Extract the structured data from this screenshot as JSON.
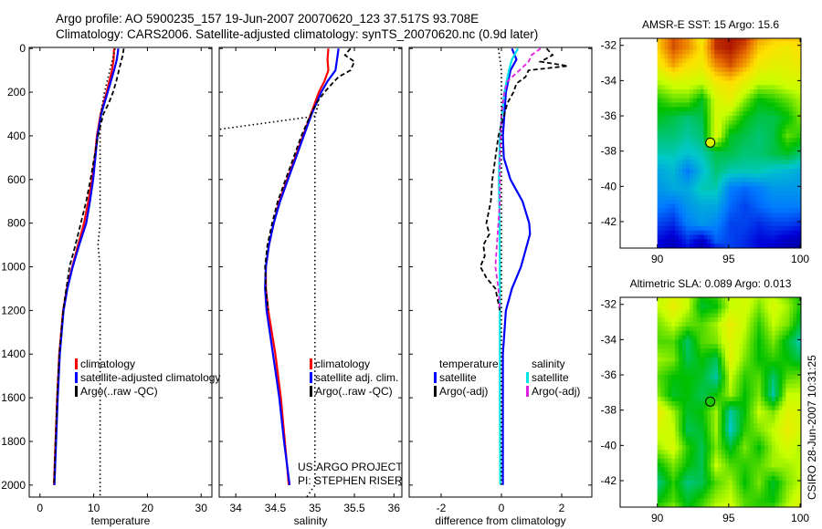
{
  "header": {
    "line1": "Argo profile: AO 5900235_157 19-Jun-2007 20070620_123 37.517S 93.708E",
    "line2": "Climatology: CARS2006. Satellite-adjusted climatology: synTS_20070620.nc (0.9d later)"
  },
  "credits": {
    "line1": "US:ARGO PROJECT",
    "line2": "PI: STEPHEN RISER"
  },
  "timestamp": "CSIRO 28-Jun-2007 10:31:25",
  "colors": {
    "climatology": "#ff0000",
    "satellite": "#0000ff",
    "argo": "#000000",
    "sal_satellite": "#00e5e5",
    "sal_argo": "#e020e0"
  },
  "colormap": [
    "#000080",
    "#0000d8",
    "#0078ff",
    "#00c8c8",
    "#00c000",
    "#c8ff00",
    "#ffe000",
    "#e87000",
    "#a00000"
  ],
  "chart_data": [
    {
      "type": "line",
      "id": "temperature",
      "xlabel": "temperature",
      "ylabel": "",
      "xlim": [
        -2,
        32
      ],
      "ylim": [
        2055,
        -5
      ],
      "xticks": [
        0,
        10,
        20,
        30
      ],
      "yticks": [
        0,
        200,
        400,
        600,
        800,
        1000,
        1200,
        1400,
        1600,
        1800,
        2000
      ],
      "legend": [
        "climatology",
        "satellite-adjusted climatology",
        "Argo(..raw -QC)"
      ],
      "series": [
        {
          "name": "climatology",
          "style": "red",
          "depth": [
            0,
            50,
            100,
            200,
            300,
            400,
            500,
            600,
            700,
            800,
            900,
            1000,
            1100,
            1200,
            1400,
            1600,
            1800,
            2000
          ],
          "values": [
            13.8,
            13.7,
            13.4,
            12.4,
            11.3,
            10.6,
            10.2,
            9.7,
            9.0,
            8.2,
            7.1,
            6.0,
            5.0,
            4.3,
            3.6,
            3.2,
            2.9,
            2.6
          ]
        },
        {
          "name": "satellite-adjusted climatology",
          "style": "blue",
          "depth": [
            0,
            50,
            100,
            200,
            300,
            400,
            500,
            600,
            700,
            800,
            900,
            1000,
            1100,
            1200,
            1400,
            1600,
            1800,
            2000
          ],
          "values": [
            14.6,
            14.3,
            13.8,
            12.6,
            11.4,
            10.7,
            10.3,
            9.9,
            9.3,
            8.6,
            7.3,
            6.1,
            5.1,
            4.4,
            3.7,
            3.3,
            3.0,
            2.7
          ]
        },
        {
          "name": "Argo(..raw -QC)",
          "style": "dash",
          "depth": [
            0,
            30,
            60,
            100,
            150,
            200,
            250,
            300,
            400,
            500,
            600,
            700,
            800,
            900,
            1000,
            1050,
            1100,
            1200,
            1400,
            1600,
            1800,
            2000
          ],
          "values": [
            15.6,
            15.4,
            15.1,
            14.7,
            14.2,
            13.6,
            12.8,
            11.8,
            10.8,
            10.1,
            9.4,
            8.6,
            7.6,
            6.6,
            5.5,
            5.2,
            4.9,
            4.3,
            3.6,
            3.2,
            2.9,
            2.6
          ]
        },
        {
          "name": "Argo raw",
          "style": "dot",
          "depth": [
            0,
            100,
            200,
            300,
            400,
            600,
            800,
            900,
            1000,
            1200,
            1600,
            2050
          ],
          "values": [
            14.0,
            13.0,
            12.0,
            11.3,
            11.2,
            11.2,
            11.2,
            10.8,
            11.2,
            11.2,
            11.2,
            11.2
          ]
        }
      ]
    },
    {
      "type": "line",
      "id": "salinity",
      "xlabel": "salinity",
      "xlim": [
        33.79,
        36.1
      ],
      "ylim": [
        2055,
        -5
      ],
      "xticks": [
        34,
        34.5,
        35,
        35.5,
        36
      ],
      "yticks": [
        0,
        200,
        400,
        600,
        800,
        1000,
        1200,
        1400,
        1600,
        1800,
        2000
      ],
      "legend": [
        "climatology",
        "satellite adj. clim.",
        "Argo(..raw -QC)"
      ],
      "series": [
        {
          "name": "climatology",
          "style": "red",
          "depth": [
            0,
            50,
            100,
            150,
            200,
            300,
            400,
            500,
            600,
            700,
            800,
            900,
            1000,
            1100,
            1200,
            1400,
            1600,
            1800,
            2000
          ],
          "values": [
            35.17,
            35.16,
            35.17,
            35.12,
            35.05,
            34.95,
            34.85,
            34.75,
            34.65,
            34.55,
            34.48,
            34.42,
            34.38,
            34.38,
            34.41,
            34.5,
            34.57,
            34.62,
            34.67
          ]
        },
        {
          "name": "satellite adj. clim.",
          "style": "blue",
          "depth": [
            0,
            50,
            100,
            150,
            200,
            300,
            400,
            500,
            600,
            700,
            800,
            900,
            1000,
            1100,
            1200,
            1400,
            1600,
            1800,
            2000
          ],
          "values": [
            35.3,
            35.28,
            35.26,
            35.16,
            35.08,
            34.96,
            34.86,
            34.76,
            34.66,
            34.56,
            34.48,
            34.42,
            34.38,
            34.37,
            34.39,
            34.47,
            34.55,
            34.61,
            34.68
          ]
        },
        {
          "name": "Argo(..raw -QC)",
          "style": "dash",
          "depth": [
            0,
            30,
            60,
            100,
            130,
            160,
            200,
            250,
            300,
            400,
            500,
            600,
            700,
            800,
            900,
            1000,
            1100,
            1200
          ],
          "values": [
            35.45,
            35.38,
            35.5,
            35.45,
            35.3,
            35.22,
            35.12,
            35.02,
            34.95,
            34.83,
            34.73,
            34.63,
            34.53,
            34.46,
            34.4,
            34.37,
            34.38,
            34.41
          ]
        },
        {
          "name": "Argo raw",
          "style": "dot",
          "depth": [
            370,
            310,
            250,
            300,
            400,
            600,
            800,
            1000,
            1200,
            1600,
            2000,
            2080
          ],
          "values": [
            33.8,
            35.0,
            35.05,
            35.0,
            35.0,
            35.0,
            35.0,
            35.0,
            35.0,
            35.0,
            35.0,
            34.85
          ]
        }
      ]
    },
    {
      "type": "line",
      "id": "difference",
      "xlabel": "difference from climatology",
      "xlim": [
        -3.06,
        3.0
      ],
      "ylim": [
        2055,
        -5
      ],
      "xticks": [
        -2,
        0,
        2
      ],
      "yticks": [
        0,
        200,
        400,
        600,
        800,
        1000,
        1200,
        1400,
        1600,
        1800,
        2000
      ],
      "legend": {
        "temperature": [
          "temperature",
          "satellite",
          "Argo(-adj)"
        ],
        "salinity": [
          "salinity",
          "satellite",
          "Argo(-adj)"
        ]
      },
      "series": [
        {
          "name": "temperature satellite",
          "style": "blue",
          "depth": [
            0,
            50,
            100,
            200,
            300,
            400,
            500,
            600,
            650,
            700,
            800,
            850,
            900,
            950,
            1000,
            1100,
            1200,
            1400,
            1600,
            2000
          ],
          "values": [
            0.35,
            0.5,
            0.3,
            0.15,
            0.1,
            0.05,
            0.08,
            0.3,
            0.5,
            0.7,
            0.92,
            0.95,
            0.85,
            0.75,
            0.65,
            0.35,
            0.15,
            0.05,
            0.05,
            0.05
          ]
        },
        {
          "name": "salinity satellite",
          "style": "cyan",
          "depth": [
            0,
            50,
            100,
            200,
            300,
            400,
            600,
            800,
            1000,
            1200,
            1600,
            2000
          ],
          "values": [
            0.55,
            0.35,
            0.25,
            0.1,
            0.02,
            -0.05,
            -0.08,
            -0.06,
            -0.05,
            -0.05,
            -0.05,
            -0.04
          ]
        },
        {
          "name": "temperature Argo(-adj)",
          "style": "dash",
          "depth": [
            0,
            30,
            60,
            80,
            100,
            130,
            160,
            200,
            250,
            300,
            400,
            500,
            600,
            700,
            800,
            850,
            900,
            950,
            1000,
            1050,
            1100,
            1200
          ],
          "values": [
            1.5,
            1.7,
            1.3,
            2.2,
            0.9,
            0.8,
            0.5,
            0.4,
            0.2,
            0.1,
            -0.1,
            -0.2,
            -0.3,
            -0.35,
            -0.5,
            -0.4,
            -0.6,
            -0.55,
            -0.7,
            -0.5,
            -0.2,
            -0.05
          ]
        },
        {
          "name": "salinity Argo(-adj)",
          "style": "magenta",
          "depth": [
            0,
            30,
            60,
            100,
            150,
            200,
            300,
            500,
            700,
            800,
            900,
            1000,
            1100,
            1200
          ],
          "values": [
            1.3,
            1.0,
            0.9,
            0.6,
            0.2,
            0.1,
            0.0,
            -0.05,
            -0.05,
            -0.1,
            -0.15,
            -0.2,
            -0.1,
            -0.05
          ]
        },
        {
          "name": "raw difference",
          "style": "dot",
          "depth": [
            0,
            100,
            200,
            400,
            800,
            1200,
            1600,
            2000
          ],
          "values": [
            -0.1,
            0.0,
            0.0,
            0.0,
            0.0,
            0.0,
            0.0,
            0.0
          ]
        }
      ]
    },
    {
      "type": "heatmap",
      "id": "sst_map",
      "title": "AMSR-E SST: 15 Argo: 15.6",
      "xlim": [
        87.4,
        100.06
      ],
      "ylim": [
        -43.5,
        -31.6
      ],
      "xticks": [
        90,
        95,
        100
      ],
      "yticks": [
        -32,
        -34,
        -36,
        -38,
        -40,
        -42
      ],
      "clim": [
        10.5,
        18.2
      ],
      "argo": {
        "lon": 93.708,
        "lat": -37.517,
        "value": 15.6
      },
      "lons": [
        90,
        91,
        92,
        93,
        94,
        95,
        96,
        97,
        98,
        99,
        100
      ],
      "lats": [
        -31.5,
        -32,
        -33,
        -34,
        -35,
        -36,
        -37,
        -38,
        -39,
        -40,
        -41,
        -42,
        -43,
        -43.5
      ],
      "values": [
        [
          16.5,
          17.5,
          17.0,
          16.0,
          17.8,
          18.0,
          17.8,
          16.8,
          16.5,
          16.5,
          16.5
        ],
        [
          16.5,
          17.5,
          17.0,
          16.2,
          17.8,
          18.0,
          17.5,
          16.5,
          16.2,
          16.0,
          16.3
        ],
        [
          16.0,
          16.8,
          16.2,
          16.0,
          17.0,
          17.5,
          16.8,
          16.0,
          15.8,
          15.8,
          16.0
        ],
        [
          15.2,
          15.5,
          15.5,
          15.3,
          16.0,
          16.3,
          15.8,
          15.3,
          15.3,
          15.5,
          15.5
        ],
        [
          14.5,
          14.8,
          14.8,
          14.2,
          15.5,
          15.8,
          15.0,
          14.3,
          14.5,
          14.8,
          15.2
        ],
        [
          14.2,
          14.0,
          13.8,
          14.0,
          15.5,
          15.0,
          14.3,
          14.0,
          14.0,
          14.3,
          15.0
        ],
        [
          13.8,
          13.8,
          13.6,
          13.8,
          15.6,
          14.2,
          14.0,
          13.8,
          14.0,
          14.8,
          14.5
        ],
        [
          13.5,
          13.5,
          13.3,
          13.5,
          14.0,
          14.0,
          13.8,
          13.8,
          14.0,
          14.2,
          13.8
        ],
        [
          13.0,
          13.2,
          12.5,
          13.2,
          13.8,
          13.5,
          13.5,
          13.5,
          13.3,
          13.2,
          13.0
        ],
        [
          12.8,
          13.0,
          13.0,
          13.5,
          13.5,
          12.5,
          12.3,
          12.5,
          12.8,
          12.8,
          12.8
        ],
        [
          12.5,
          12.3,
          12.8,
          13.0,
          13.0,
          12.3,
          12.0,
          12.3,
          12.5,
          12.5,
          12.5
        ],
        [
          12.0,
          11.8,
          12.5,
          12.8,
          12.6,
          12.0,
          12.0,
          11.8,
          12.0,
          12.0,
          11.8
        ],
        [
          11.5,
          11.2,
          11.8,
          11.2,
          12.2,
          12.0,
          11.8,
          11.5,
          11.5,
          11.2,
          11.0
        ],
        [
          11.5,
          11.2,
          11.5,
          11.0,
          11.5,
          12.0,
          11.8,
          11.5,
          11.2,
          11.0,
          11.0
        ]
      ]
    },
    {
      "type": "heatmap",
      "id": "sla_map",
      "title": "Altimetric SLA: 0.089 Argo: 0.013",
      "xlim": [
        87.4,
        100.06
      ],
      "ylim": [
        -43.5,
        -31.6
      ],
      "xticks": [
        90,
        95,
        100
      ],
      "yticks": [
        -32,
        -34,
        -36,
        -38,
        -40,
        -42
      ],
      "clim": [
        -0.4,
        0.4
      ],
      "argo": {
        "lon": 93.708,
        "lat": -37.517,
        "value": 0.013
      },
      "lons": [
        90,
        91,
        92,
        93,
        94,
        95,
        96,
        97,
        98,
        99,
        100
      ],
      "lats": [
        -31.5,
        -32,
        -33,
        -34,
        -35,
        -36,
        -37,
        -38,
        -39,
        -40,
        -41,
        -42,
        -43,
        -43.5
      ],
      "values": [
        [
          0.1,
          0.14,
          0.1,
          0.0,
          0.02,
          0.1,
          0.12,
          0.08,
          0.1,
          0.06,
          0.0
        ],
        [
          0.1,
          0.16,
          0.1,
          -0.02,
          0.0,
          0.1,
          0.12,
          0.06,
          0.12,
          0.08,
          0.0
        ],
        [
          0.06,
          0.1,
          0.05,
          0.04,
          0.08,
          0.16,
          0.1,
          0.02,
          0.1,
          0.06,
          -0.04
        ],
        [
          0.04,
          0.04,
          -0.05,
          0.04,
          0.06,
          0.14,
          0.08,
          0.0,
          0.06,
          -0.02,
          -0.1
        ],
        [
          0.08,
          0.06,
          -0.04,
          0.0,
          -0.04,
          0.14,
          0.06,
          0.0,
          0.02,
          0.0,
          -0.04
        ],
        [
          0.04,
          0.0,
          0.0,
          -0.02,
          -0.08,
          0.1,
          0.02,
          0.04,
          -0.05,
          0.04,
          0.06
        ],
        [
          0.06,
          -0.02,
          0.0,
          -0.04,
          0.0,
          0.08,
          0.0,
          0.06,
          -0.08,
          0.1,
          0.1
        ],
        [
          0.16,
          0.08,
          -0.02,
          0.0,
          0.08,
          -0.08,
          0.0,
          0.1,
          0.06,
          0.14,
          0.12
        ],
        [
          0.12,
          0.1,
          -0.04,
          -0.02,
          0.08,
          -0.1,
          0.02,
          0.06,
          0.1,
          0.16,
          0.12
        ],
        [
          0.08,
          0.12,
          0.02,
          -0.04,
          0.06,
          -0.02,
          0.06,
          0.0,
          0.08,
          0.12,
          0.08
        ],
        [
          0.0,
          0.06,
          0.0,
          -0.04,
          0.1,
          0.04,
          0.02,
          0.04,
          0.08,
          0.08,
          0.1
        ],
        [
          -0.06,
          0.02,
          -0.06,
          -0.04,
          0.04,
          0.08,
          0.0,
          0.06,
          -0.02,
          0.06,
          0.1
        ],
        [
          0.0,
          0.04,
          -0.02,
          0.02,
          0.08,
          0.1,
          0.04,
          0.02,
          0.0,
          0.08,
          0.14
        ],
        [
          0.04,
          0.08,
          0.0,
          0.04,
          0.1,
          0.12,
          0.04,
          0.02,
          0.04,
          0.1,
          0.14
        ]
      ]
    }
  ]
}
